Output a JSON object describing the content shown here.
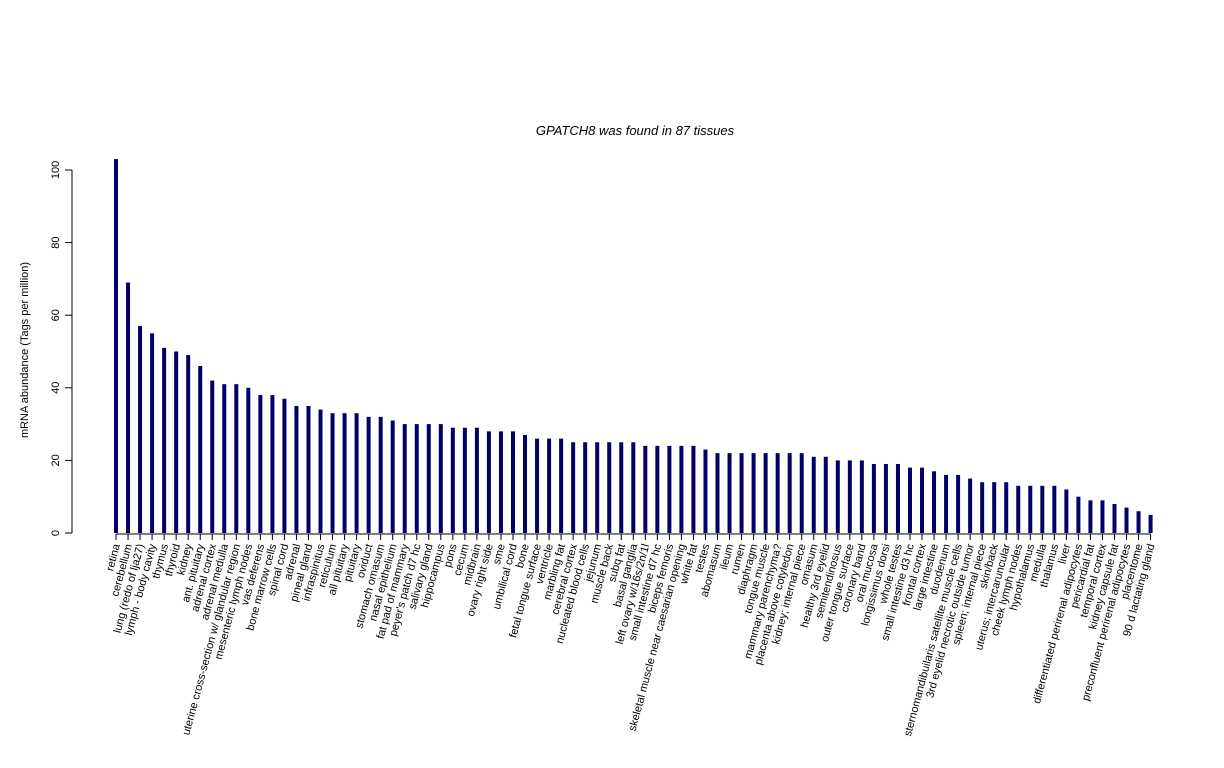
{
  "chart_data": {
    "type": "bar",
    "title": "GPATCH8  was found in  87  tissues",
    "y_label": "mRNA abundance (Tags per million)",
    "color": "#000066",
    "ylim": [
      0,
      104
    ],
    "yticks": [
      0,
      20,
      40,
      60,
      80,
      100
    ],
    "categories": [
      "retina",
      "cerebellum",
      "lung (redo of lja27)",
      "lymph - body cavity",
      "thymus",
      "thyroid",
      "kidney",
      "ant. pituitary",
      "adrenal cortex",
      "adrenal medulla",
      "uterine cross-section w/ glandular region",
      "mesenteric lymph nodes",
      "vas deferens",
      "bone marrow cells",
      "spinal cord",
      "adrenal",
      "pineal gland",
      "infraspinitus",
      "reticulum",
      "all pituitary",
      "pituitary",
      "oviduct",
      "stomach omasum",
      "nasal epithelium",
      "fat pad of mammary",
      "peyer's patch d7 hc",
      "salivary gland",
      "hippocampus",
      "pons",
      "cecum",
      "midbrain",
      "ovary right side",
      "sme",
      "umbilical cord",
      "bone",
      "fetal tongue surface",
      "ventricle",
      "marbling fat",
      "cerebral cortex",
      "nucleated blood cells",
      "jejunum",
      "muscle back",
      "subq fat",
      "basal ganglia",
      "left ovary w/16s/2n/1l",
      "small intestine d7 hc",
      "biceps femoris",
      "skeletal muscle near caesarian opening",
      "white fat",
      "testes",
      "abomasum",
      "ileum",
      "rumen",
      "diaphragm",
      "tongue muscle",
      "mammary parenchyma?",
      "placenta above cotyledon",
      "kidney; internal piece",
      "omasum",
      "healthy 3rd eyelid",
      "semitendinosus",
      "outer tongue surface",
      "coronary band",
      "oral mucosa",
      "longissimus dorsi",
      "whole testes",
      "small intestine d3 hc",
      "frontal cortex",
      "large intestine",
      "duodenum",
      "sternomandibuilaris satellite muscle cells",
      "3rd eyelid necrotic outside tumor",
      "spleen; internal piece",
      "skin/back",
      "uterus; intercaruncular",
      "cheek lymph nodes",
      "hypothalamus",
      "medulla",
      "thalamus",
      "liver",
      "differentiated perirenal adipocytes",
      "pericardial fat",
      "temporal cortex",
      "kidney capsule fat",
      "preconfluent perirenal adipocytes",
      "placentome",
      "90 d lactating gland"
    ],
    "values": [
      103,
      69,
      57,
      55,
      51,
      50,
      49,
      46,
      42,
      41,
      41,
      40,
      38,
      38,
      37,
      35,
      35,
      34,
      33,
      33,
      33,
      32,
      32,
      31,
      30,
      30,
      30,
      30,
      29,
      29,
      29,
      28,
      28,
      28,
      27,
      26,
      26,
      26,
      25,
      25,
      25,
      25,
      25,
      25,
      24,
      24,
      24,
      24,
      24,
      23,
      22,
      22,
      22,
      22,
      22,
      22,
      22,
      22,
      21,
      21,
      20,
      20,
      20,
      19,
      19,
      19,
      18,
      18,
      17,
      16,
      16,
      15,
      14,
      14,
      14,
      13,
      13,
      13,
      13,
      12,
      10,
      9,
      9,
      8,
      7,
      6,
      5
    ]
  }
}
